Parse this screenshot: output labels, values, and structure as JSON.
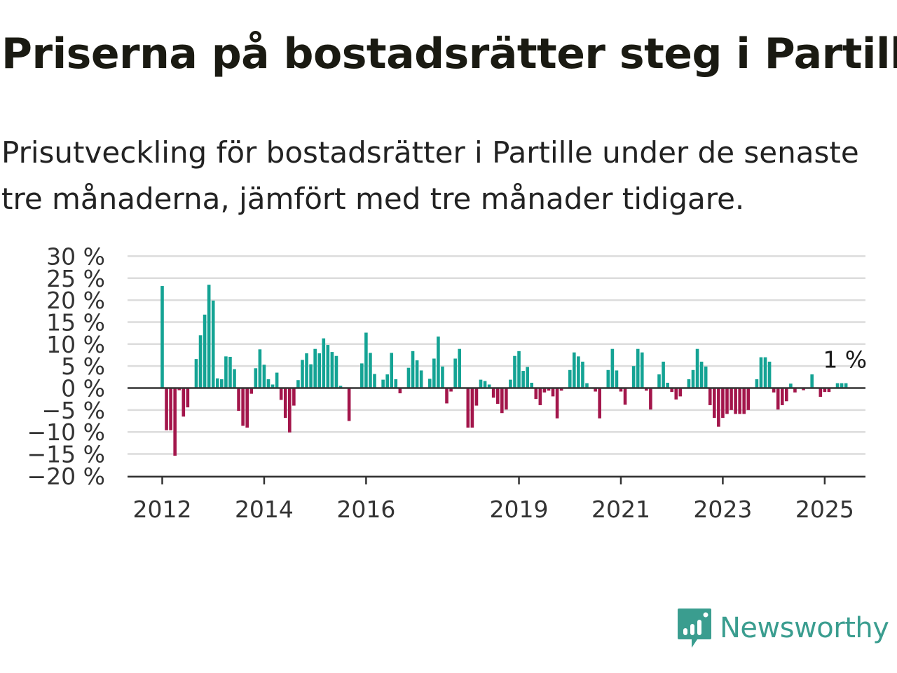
{
  "title": "Priserna på bostadsrätter steg i Partille",
  "subtitle": "Prisutveckling för bostadsrätter i Partille under de senaste tre månaderna, jämfört med tre månader tidigare.",
  "brand": "Newsworthy",
  "colors": {
    "positive": "#14a394",
    "negative": "#a3164b",
    "grid": "#dcdcdc",
    "axis": "#333333",
    "brand": "#3a9d8f"
  },
  "chart_data": {
    "type": "bar",
    "x_start": "2012-01",
    "x_step": "month",
    "values": [
      23.2,
      -9.6,
      -9.6,
      -15.4,
      -0.5,
      -6.5,
      -4.4,
      0,
      6.6,
      12.0,
      16.7,
      23.5,
      19.9,
      2.2,
      2.0,
      7.2,
      7.1,
      4.3,
      -5.2,
      -8.6,
      -9.0,
      -1.3,
      4.5,
      8.8,
      5.3,
      2.0,
      0.8,
      3.5,
      -2.7,
      -6.8,
      -10.1,
      -4.0,
      1.8,
      6.4,
      7.9,
      5.4,
      8.9,
      7.9,
      11.3,
      9.8,
      8.2,
      7.3,
      0.5,
      0,
      -7.5,
      0,
      0,
      5.6,
      12.6,
      8.0,
      3.2,
      0,
      1.9,
      3.1,
      8.0,
      2.0,
      -1.2,
      0,
      4.6,
      8.4,
      6.3,
      4.0,
      0,
      2.1,
      6.7,
      11.7,
      4.9,
      -3.5,
      -0.8,
      6.7,
      8.9,
      0,
      -9.0,
      -9.0,
      -4.0,
      1.9,
      1.6,
      0.8,
      -2.2,
      -3.6,
      -5.7,
      -4.9,
      1.9,
      7.3,
      8.4,
      3.9,
      4.8,
      1.2,
      -2.5,
      -3.9,
      -1.0,
      -0.6,
      -1.9,
      -6.9,
      -0.6,
      0,
      4.1,
      8.1,
      7.2,
      6.0,
      1.1,
      0,
      -0.8,
      -6.9,
      0,
      4.1,
      8.9,
      4.0,
      -0.8,
      -3.8,
      0,
      5.0,
      8.9,
      8.1,
      -0.6,
      -4.9,
      0,
      3.1,
      6.0,
      1.2,
      -0.9,
      -2.6,
      -1.9,
      0,
      2.0,
      4.1,
      8.9,
      6.0,
      4.9,
      -3.9,
      -6.8,
      -8.8,
      -6.8,
      -5.9,
      -5.0,
      -5.9,
      -5.9,
      -5.9,
      -5.0,
      0,
      2.0,
      7.0,
      7.0,
      6.0,
      -1.0,
      -4.9,
      -3.9,
      -3.0,
      1.0,
      -1.0,
      0,
      -0.5,
      0,
      3.1,
      0,
      -2.0,
      -0.9,
      -0.9,
      0,
      1.1,
      1.1,
      1.1
    ],
    "x_ticks": [
      {
        "date": "2012-01",
        "label": "2012"
      },
      {
        "date": "2014-01",
        "label": "2014"
      },
      {
        "date": "2016-01",
        "label": "2016"
      },
      {
        "date": "2019-01",
        "label": "2019"
      },
      {
        "date": "2021-01",
        "label": "2021"
      },
      {
        "date": "2023-01",
        "label": "2023"
      },
      {
        "date": "2025-01",
        "label": "2025"
      }
    ],
    "y_ticks": [
      {
        "value": 30,
        "label": "30 %"
      },
      {
        "value": 25,
        "label": "25 %"
      },
      {
        "value": 20,
        "label": "20 %"
      },
      {
        "value": 15,
        "label": "15 %"
      },
      {
        "value": 10,
        "label": "10 %"
      },
      {
        "value": 5,
        "label": "5 %"
      },
      {
        "value": 0,
        "label": "0 %"
      },
      {
        "value": -5,
        "label": "−5 %"
      },
      {
        "value": -10,
        "label": "−10 %"
      },
      {
        "value": -15,
        "label": "−15 %"
      },
      {
        "value": -20,
        "label": "−20 %"
      }
    ],
    "ylim": [
      -20,
      30
    ],
    "grid": true,
    "annotation": {
      "text": "1 %"
    }
  }
}
